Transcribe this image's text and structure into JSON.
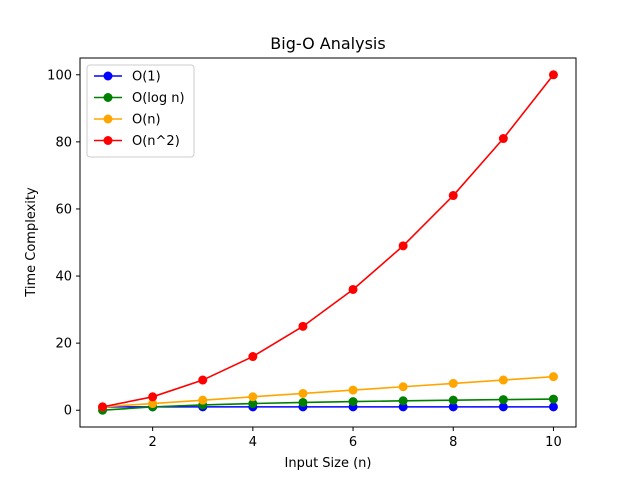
{
  "chart_data": {
    "type": "line",
    "title": "Big-O Analysis",
    "xlabel": "Input Size (n)",
    "ylabel": "Time Complexity",
    "x": [
      1,
      2,
      3,
      4,
      5,
      6,
      7,
      8,
      9,
      10
    ],
    "xlim": [
      0.55,
      10.45
    ],
    "ylim": [
      -5,
      105
    ],
    "xticks": [
      2,
      4,
      6,
      8,
      10
    ],
    "yticks": [
      0,
      20,
      40,
      60,
      80,
      100
    ],
    "grid": false,
    "legend_position": "top-left",
    "series": [
      {
        "name": "O(1)",
        "color": "#0000ff",
        "values": [
          1,
          1,
          1,
          1,
          1,
          1,
          1,
          1,
          1,
          1
        ]
      },
      {
        "name": "O(log n)",
        "color": "#008000",
        "values": [
          0,
          1,
          1.58,
          2,
          2.32,
          2.58,
          2.81,
          3,
          3.17,
          3.32
        ]
      },
      {
        "name": "O(n)",
        "color": "#ffa500",
        "values": [
          1,
          2,
          3,
          4,
          5,
          6,
          7,
          8,
          9,
          10
        ]
      },
      {
        "name": "O(n^2)",
        "color": "#ff0000",
        "values": [
          1,
          4,
          9,
          16,
          25,
          36,
          49,
          64,
          81,
          100
        ]
      }
    ]
  }
}
